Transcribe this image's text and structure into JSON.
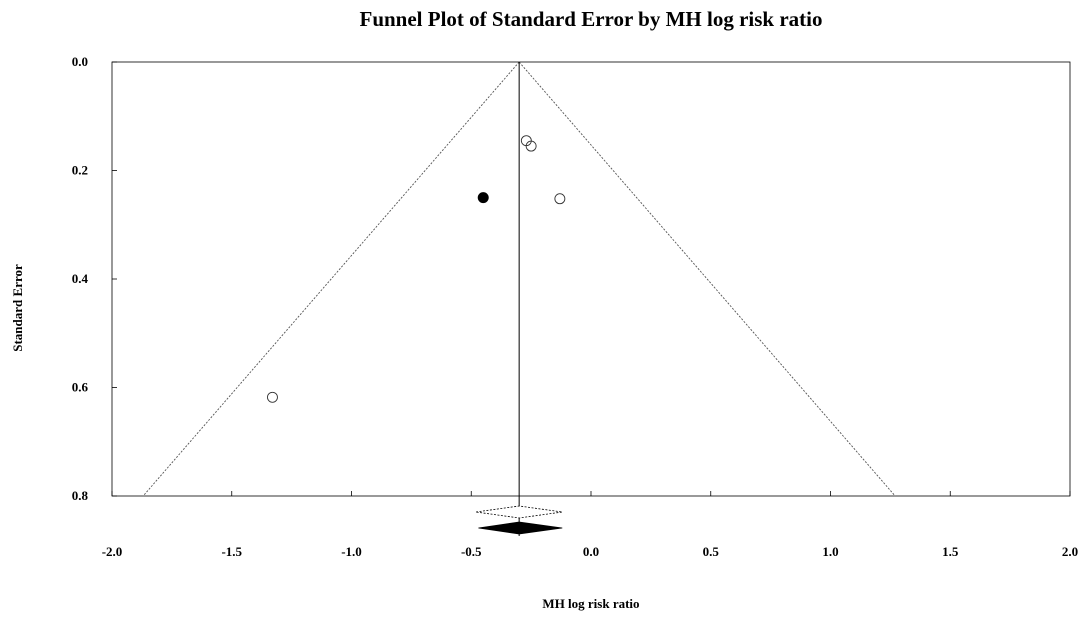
{
  "chart_data": {
    "type": "scatter",
    "title": "Funnel Plot of Standard Error by MH log risk ratio",
    "xlabel": "MH log risk ratio",
    "ylabel": "Standard Error",
    "xlim": [
      -2.0,
      2.0
    ],
    "ylim": [
      0.0,
      0.8
    ],
    "y_inverted": true,
    "x_ticks": [
      "-2.0",
      "-1.5",
      "-1.0",
      "-0.5",
      "0.0",
      "0.5",
      "1.0",
      "1.5",
      "2.0"
    ],
    "y_ticks": [
      "0.0",
      "0.2",
      "0.4",
      "0.6",
      "0.8"
    ],
    "grid": false,
    "legend": "none",
    "center_line_x": -0.3,
    "funnel": {
      "apex": [
        -0.3,
        0.0
      ],
      "base_left": [
        -1.87,
        0.8
      ],
      "base_right": [
        1.27,
        0.8
      ]
    },
    "series": [
      {
        "style": "open-circle",
        "points": [
          {
            "x": -0.27,
            "y": 0.145
          },
          {
            "x": -0.25,
            "y": 0.155
          },
          {
            "x": -0.13,
            "y": 0.252
          },
          {
            "x": -1.33,
            "y": 0.618
          }
        ]
      },
      {
        "style": "filled-circle",
        "points": [
          {
            "x": -0.45,
            "y": 0.25
          }
        ]
      }
    ],
    "summary_diamonds": [
      {
        "style": "open",
        "center": -0.3,
        "lower": -0.48,
        "upper": -0.12
      },
      {
        "style": "filled",
        "center": -0.3,
        "lower": -0.47,
        "upper": -0.12
      }
    ]
  }
}
